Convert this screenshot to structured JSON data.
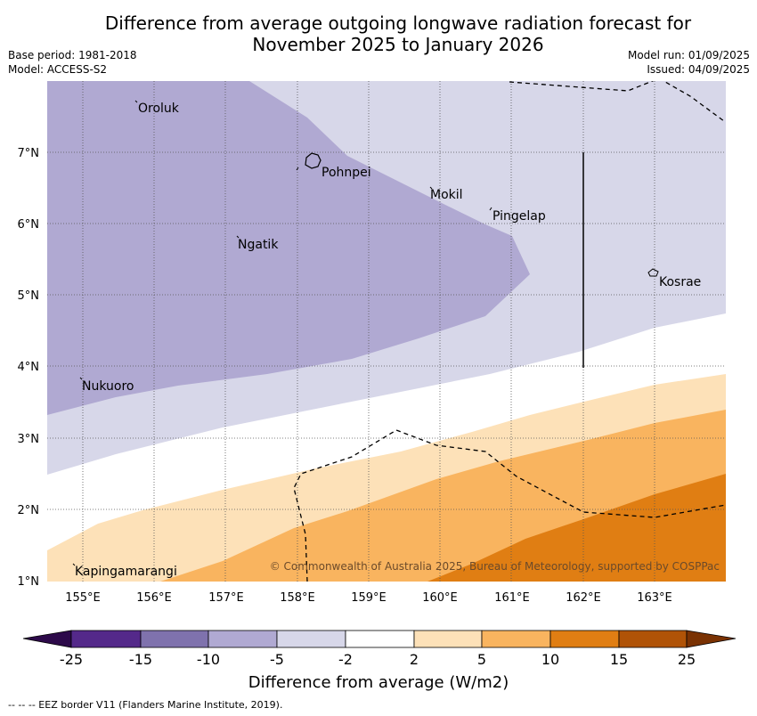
{
  "title": {
    "line1": "Difference from average outgoing longwave radiation forecast for",
    "line2": "November 2025 to January 2026"
  },
  "meta": {
    "base_period": "Base period: 1981-2018",
    "model": "Model: ACCESS-S2",
    "model_run": "Model run: 01/09/2025",
    "issued": "Issued: 04/09/2025"
  },
  "map": {
    "lon_ticks": [
      "155°E",
      "156°E",
      "157°E",
      "158°E",
      "159°E",
      "160°E",
      "161°E",
      "162°E",
      "163°E"
    ],
    "lat_ticks": [
      "7°N",
      "6°N",
      "5°N",
      "4°N",
      "3°N",
      "2°N",
      "1°N"
    ],
    "places": [
      {
        "name": "Oroluk"
      },
      {
        "name": "Pohnpei"
      },
      {
        "name": "Mokil"
      },
      {
        "name": "Pingelap"
      },
      {
        "name": "Ngatik"
      },
      {
        "name": "Kosrae"
      },
      {
        "name": "Nukuoro"
      },
      {
        "name": "Kapingamarangi"
      }
    ],
    "copyright": "© Commonwealth of Australia 2025, Bureau of Meteorology, supported by COSPPac"
  },
  "colorbar": {
    "labels": [
      "-25",
      "-15",
      "-10",
      "-5",
      "-2",
      "2",
      "5",
      "10",
      "15",
      "25"
    ],
    "colors": [
      "#2d0a4a",
      "#54298a",
      "#7f72ad",
      "#b0a9d2",
      "#d7d7e9",
      "#ffffff",
      "#fde1b8",
      "#f9b45f",
      "#e07e13",
      "#b05307",
      "#7a3203"
    ],
    "title": "Difference from average (W/m2)"
  },
  "footer": "--  --  -- EEZ border V11 (Flanders Marine Institute, 2019)."
}
